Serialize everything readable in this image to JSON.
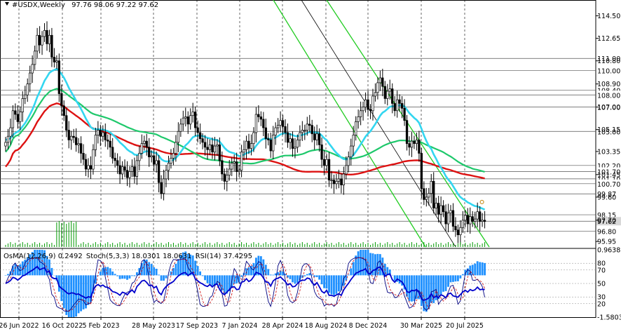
{
  "header": {
    "symbol": "#USDX,Weekly",
    "ohlc": "97.76 98.06 97.22 97.62"
  },
  "oscillator_header": {
    "osma": "OsMA(12,26,9) 0.2492",
    "stoch": "Stoch(5,3,3) 18.0301 18.0631",
    "rsi": "RSI(14) 37.4295"
  },
  "colors": {
    "candles": "#000000",
    "ma_fast": "#33d6f0",
    "ma_mid": "#1ec86b",
    "ma_slow": "#dd1111",
    "channel": "#22cc22",
    "channel_mid": "#000000",
    "volume": "#009900",
    "osma_bars": "#1e90ff",
    "stoch_main": "#000080",
    "stoch_signal": "#cc0000",
    "rsi": "#0000cc",
    "price_tag_bg": "#ffffff"
  },
  "chart_data": {
    "type": "candlestick",
    "title": "#USDX,Weekly",
    "y_ticks": [
      "114.50",
      "112.65",
      "110.80",
      "108.90",
      "107.00",
      "105.15",
      "103.35",
      "101.45",
      "99.60",
      "97.70",
      "95.95"
    ],
    "level_labels": [
      "111.00",
      "110.00",
      "108.40",
      "108.00",
      "107.00",
      "105.00",
      "102.20",
      "101.70",
      "101.10",
      "100.70",
      "99.87",
      "98.15",
      "97.62",
      "96.80"
    ],
    "highlighted_label": "97.62",
    "x_ticks": [
      "26 Jun 2022",
      "16 Oct 2022",
      "5 Feb 2023",
      "28 May 2023",
      "17 Sep 2023",
      "7 Jan 2024",
      "28 Apr 2024",
      "18 Aug 2024",
      "8 Dec 2024",
      "30 Mar 2025",
      "20 Jul 2025"
    ],
    "ylim": [
      95.5,
      115.8
    ],
    "close_series": [
      104.1,
      104.6,
      105.3,
      106.7,
      106.4,
      105.8,
      106.6,
      107.7,
      108.0,
      108.9,
      109.8,
      110.5,
      111.6,
      112.9,
      112.1,
      112.8,
      113.3,
      112.2,
      112.9,
      111.1,
      110.7,
      110.8,
      108.1,
      107.1,
      106.3,
      105.1,
      104.3,
      104.6,
      104.5,
      103.9,
      104.0,
      103.2,
      102.7,
      101.9,
      102.2,
      101.9,
      103.5,
      104.7,
      105.1,
      104.6,
      104.9,
      104.3,
      104.2,
      103.7,
      102.8,
      102.6,
      102.2,
      101.5,
      102.1,
      101.8,
      101.2,
      101.7,
      102.1,
      101.3,
      102.6,
      103.2,
      104.0,
      104.2,
      103.7,
      102.9,
      103.0,
      102.3,
      102.6,
      100.8,
      99.9,
      101.1,
      101.8,
      102.4,
      102.8,
      103.2,
      104.1,
      105.0,
      105.6,
      106.1,
      106.2,
      105.6,
      106.3,
      106.6,
      105.3,
      104.9,
      104.4,
      104.1,
      103.7,
      103.5,
      103.9,
      103.3,
      103.8,
      103.9,
      102.6,
      101.5,
      100.9,
      101.4,
      101.9,
      102.4,
      102.5,
      101.7,
      101.8,
      103.3,
      103.5,
      104.2,
      103.6,
      104.0,
      104.9,
      106.4,
      106.2,
      106.0,
      105.3,
      104.4,
      104.3,
      103.4,
      104.7,
      105.3,
      105.5,
      105.9,
      105.4,
      104.9,
      104.1,
      104.4,
      103.6,
      103.7,
      104.3,
      104.9,
      105.1,
      105.1,
      105.6,
      105.5,
      104.8,
      104.3,
      104.8,
      103.9,
      102.7,
      102.2,
      102.7,
      101.0,
      101.0,
      100.7,
      100.9,
      101.1,
      100.6,
      101.5,
      102.2,
      102.9,
      103.8,
      104.7,
      105.8,
      106.2,
      106.7,
      107.0,
      107.6,
      106.8,
      106.7,
      107.9,
      108.2,
      109.0,
      109.4,
      108.7,
      107.7,
      108.3,
      108.5,
      107.3,
      106.7,
      107.6,
      107.3,
      106.9,
      105.9,
      104.0,
      103.7,
      104.2,
      104.0,
      104.3,
      103.2,
      100.3,
      99.4,
      99.6,
      99.9,
      100.9,
      98.7,
      99.1,
      98.2,
      98.9,
      98.4,
      97.4,
      98.3,
      98.5,
      97.2,
      96.9,
      96.5,
      97.1,
      97.7,
      98.1,
      97.4,
      98.0,
      97.6,
      97.8,
      98.4,
      97.6,
      97.7,
      97.6
    ],
    "indicators": [
      "OsMA(12,26,9)",
      "Stoch(5,3,3)",
      "RSI(14)"
    ],
    "indicator_values": {
      "osma": 0.2492,
      "stoch_main": 18.0301,
      "stoch_signal": 18.0631,
      "rsi": 37.4295
    },
    "oscillator_ticks": [
      "0.9638",
      "80",
      "70",
      "50",
      "30",
      "20",
      "-1.5803"
    ],
    "grid": true
  }
}
